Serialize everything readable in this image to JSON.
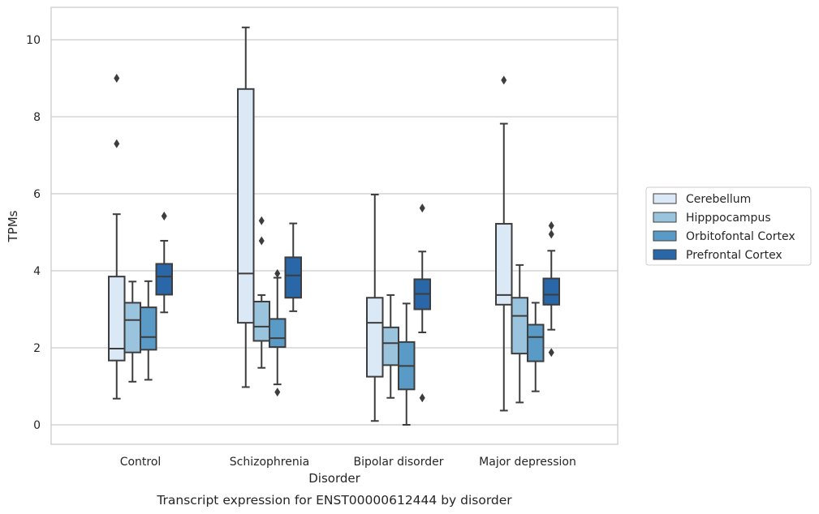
{
  "caption": "Transcript expression for ENST00000612444 by disorder",
  "chart_data": {
    "type": "boxplot",
    "xlabel": "Disorder",
    "ylabel": "TPMs",
    "ylim": [
      -0.5,
      10.8
    ],
    "yticks": [
      0,
      2,
      4,
      6,
      8,
      10
    ],
    "grid": "horizontal",
    "legend_position": "right",
    "categories": [
      "Control",
      "Schizophrenia",
      "Bipolar disorder",
      "Major depression"
    ],
    "series": [
      {
        "name": "Cerebellum",
        "color": "#dbe8f5",
        "boxes": [
          {
            "whislo": 0.68,
            "q1": 1.67,
            "med": 1.98,
            "q3": 3.85,
            "whishi": 5.47,
            "fliers": [
              9.0,
              7.3
            ]
          },
          {
            "whislo": 0.98,
            "q1": 2.65,
            "med": 3.93,
            "q3": 8.72,
            "whishi": 10.32,
            "fliers": []
          },
          {
            "whislo": 0.1,
            "q1": 1.25,
            "med": 2.65,
            "q3": 3.3,
            "whishi": 5.98,
            "fliers": []
          },
          {
            "whislo": 0.37,
            "q1": 3.12,
            "med": 3.37,
            "q3": 5.22,
            "whishi": 7.82,
            "fliers": [
              8.95
            ]
          }
        ]
      },
      {
        "name": "Hipppocampus",
        "color": "#9ac3dd",
        "boxes": [
          {
            "whislo": 1.12,
            "q1": 1.88,
            "med": 2.72,
            "q3": 3.17,
            "whishi": 3.72,
            "fliers": []
          },
          {
            "whislo": 1.48,
            "q1": 2.18,
            "med": 2.55,
            "q3": 3.2,
            "whishi": 3.37,
            "fliers": [
              5.3,
              4.78
            ]
          },
          {
            "whislo": 0.7,
            "q1": 1.55,
            "med": 2.12,
            "q3": 2.53,
            "whishi": 3.37,
            "fliers": []
          },
          {
            "whislo": 0.58,
            "q1": 1.85,
            "med": 2.83,
            "q3": 3.3,
            "whishi": 4.15,
            "fliers": []
          }
        ]
      },
      {
        "name": "Orbitofontal Cortex",
        "color": "#5a9ac6",
        "boxes": [
          {
            "whislo": 1.17,
            "q1": 1.95,
            "med": 2.28,
            "q3": 3.05,
            "whishi": 3.73,
            "fliers": []
          },
          {
            "whislo": 1.05,
            "q1": 2.02,
            "med": 2.25,
            "q3": 2.75,
            "whishi": 3.82,
            "fliers": [
              3.93,
              0.85
            ]
          },
          {
            "whislo": 0.0,
            "q1": 0.92,
            "med": 1.53,
            "q3": 2.15,
            "whishi": 3.15,
            "fliers": []
          },
          {
            "whislo": 0.87,
            "q1": 1.65,
            "med": 2.28,
            "q3": 2.6,
            "whishi": 3.17,
            "fliers": []
          }
        ]
      },
      {
        "name": "Prefrontal Cortex",
        "color": "#2967a8",
        "boxes": [
          {
            "whislo": 2.92,
            "q1": 3.38,
            "med": 3.85,
            "q3": 4.18,
            "whishi": 4.78,
            "fliers": [
              5.42
            ]
          },
          {
            "whislo": 2.95,
            "q1": 3.3,
            "med": 3.88,
            "q3": 4.35,
            "whishi": 5.23,
            "fliers": []
          },
          {
            "whislo": 2.4,
            "q1": 3.0,
            "med": 3.4,
            "q3": 3.78,
            "whishi": 4.5,
            "fliers": [
              5.63,
              0.7
            ]
          },
          {
            "whislo": 2.47,
            "q1": 3.12,
            "med": 3.38,
            "q3": 3.8,
            "whishi": 4.52,
            "fliers": [
              5.17,
              4.95,
              1.88
            ]
          }
        ]
      }
    ]
  }
}
